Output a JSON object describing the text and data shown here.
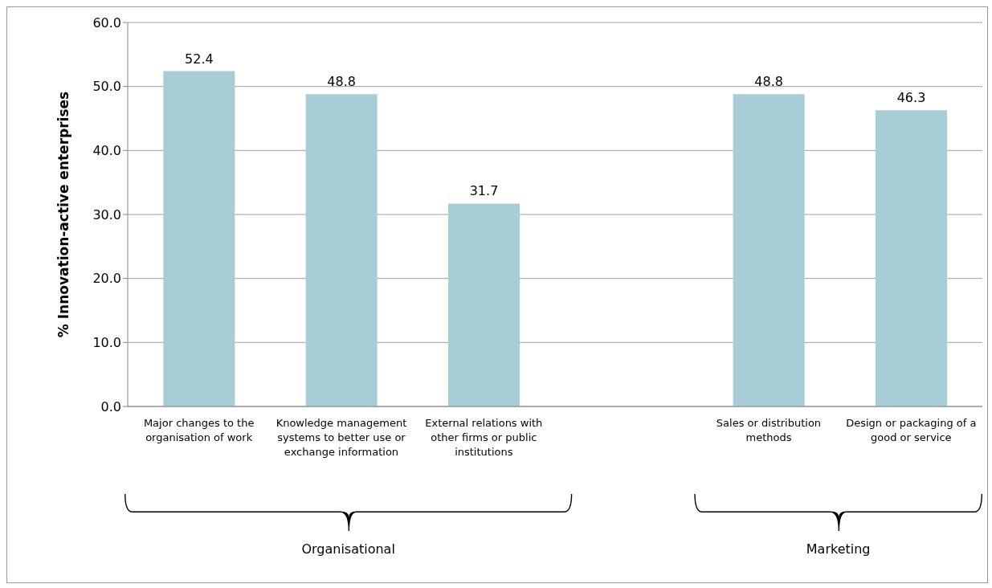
{
  "chart_data": {
    "type": "bar",
    "ylabel": "% Innovation-active enterprises",
    "categories": [
      "Major changes to the organisation of work",
      "Knowledge management systems to better use or exchange information",
      "External relations with other firms or public institutions",
      null,
      "Sales or distribution methods",
      "Design or packaging of a good or service"
    ],
    "values": [
      52.4,
      48.8,
      31.7,
      null,
      48.8,
      46.3
    ],
    "color": "#a9cdd6",
    "ylim": [
      0,
      60
    ],
    "yticks": [
      {
        "value": 0,
        "label": "0.0"
      },
      {
        "value": 10,
        "label": "10.0"
      },
      {
        "value": 20,
        "label": "20.0"
      },
      {
        "value": 30,
        "label": "30.0"
      },
      {
        "value": 40,
        "label": "40.0"
      },
      {
        "value": 50,
        "label": "50.0"
      },
      {
        "value": 60,
        "label": "60.0"
      }
    ],
    "grid": "y",
    "data_labels": true,
    "annotations": [
      "Organisational",
      "Marketing"
    ]
  }
}
